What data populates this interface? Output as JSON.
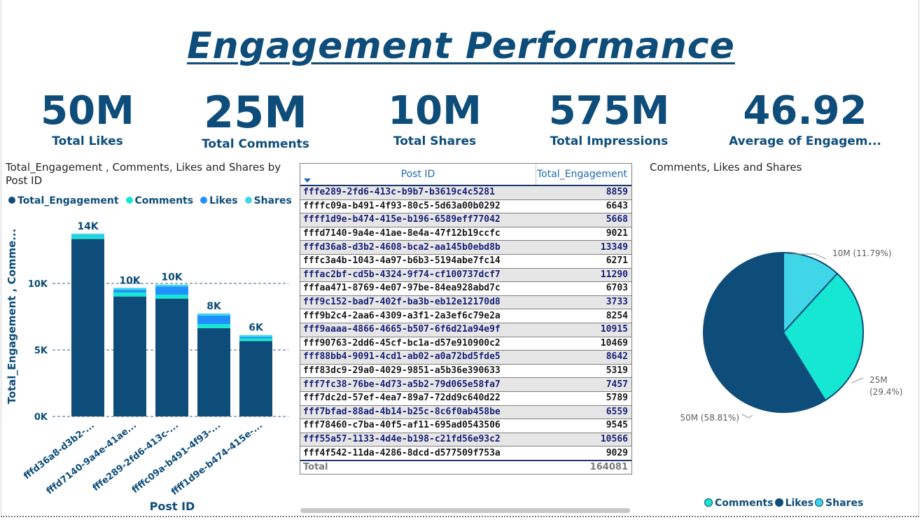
{
  "page": {
    "title": "Engagement Performance"
  },
  "kpis": [
    {
      "value": "50M",
      "label": "Total Likes"
    },
    {
      "value": "25M",
      "label": "Total Comments"
    },
    {
      "value": "10M",
      "label": "Total Shares"
    },
    {
      "value": "575M",
      "label": "Total Impressions"
    },
    {
      "value": "46.92",
      "label": "Average of Engagem..."
    }
  ],
  "bar_visual": {
    "title_line1": "Total_Engagement , Comments, Likes and Shares by",
    "title_line2": "Post ID",
    "legend": [
      {
        "name": "Total_Engagement",
        "color": "#0e4d7a"
      },
      {
        "name": "Comments",
        "color": "#16e7d3"
      },
      {
        "name": "Likes",
        "color": "#1e90ff"
      },
      {
        "name": "Shares",
        "color": "#3fd6e8"
      }
    ]
  },
  "table": {
    "col1": "Post ID",
    "col2": "Total_Engagement",
    "rows": [
      [
        "fffe289-2fd6-413c-b9b7-b3619c4c5281",
        "8859"
      ],
      [
        "ffffc09a-b491-4f93-80c5-5d63a00b0292",
        "6643"
      ],
      [
        "ffff1d9e-b474-415e-b196-6589eff77042",
        "5668"
      ],
      [
        "fffd7140-9a4e-41ae-8e4a-47f12b19ccfc",
        "9021"
      ],
      [
        "fffd36a8-d3b2-4608-bca2-aa145b0ebd8b",
        "13349"
      ],
      [
        "fffc3a4b-1043-4a97-b6b3-5194abe7fc14",
        "6271"
      ],
      [
        "fffac2bf-cd5b-4324-9f74-cf100737dcf7",
        "11290"
      ],
      [
        "fffaa471-8769-4e07-97be-84ea928abd7c",
        "6703"
      ],
      [
        "fff9c152-bad7-402f-ba3b-eb12e12170d8",
        "3733"
      ],
      [
        "fff9b2c4-2aa6-4309-a3f1-2a3ef6c79e2a",
        "8254"
      ],
      [
        "fff9aaaa-4866-4665-b507-6f6d21a94e9f",
        "10915"
      ],
      [
        "fff90763-2dd6-45cf-bc1a-d57e910900c2",
        "10469"
      ],
      [
        "fff88bb4-9091-4cd1-ab02-a0a72bd5fde5",
        "8642"
      ],
      [
        "fff83dc9-29a0-4029-9851-a5b36e390633",
        "5319"
      ],
      [
        "fff7fc38-76be-4d73-a5b2-79d065e58fa7",
        "7457"
      ],
      [
        "fff7dc2d-57ef-4ea7-89a7-72dd9c640d22",
        "5789"
      ],
      [
        "fff7bfad-88ad-4b14-b25c-8c6f0ab458be",
        "6559"
      ],
      [
        "fff78460-c7ba-40f5-af11-695ad0543506",
        "9545"
      ],
      [
        "fff55a57-1133-4d4e-b198-c21fd56e93c2",
        "10566"
      ],
      [
        "fff4f542-11da-4286-8dcd-d577509f753a",
        "9029"
      ]
    ],
    "total_label": "Total",
    "total_value": "164081"
  },
  "pie_visual": {
    "title": "Comments, Likes and Shares",
    "legend": [
      {
        "name": "Comments",
        "color": "#16e7d3"
      },
      {
        "name": "Likes",
        "color": "#0e4d7a"
      },
      {
        "name": "Shares",
        "color": "#3fd6e8"
      }
    ]
  },
  "chart_data": [
    {
      "type": "bar",
      "stacked": true,
      "xlabel": "Post ID",
      "ylabel": "Total_Engagement , Comme...",
      "ylim": [
        0,
        14000
      ],
      "yticks": [
        {
          "v": 0,
          "label": "0K"
        },
        {
          "v": 5000,
          "label": "5K"
        },
        {
          "v": 10000,
          "label": "10K"
        }
      ],
      "grid": "dashed",
      "legend_placement": "top-left",
      "categories": [
        "fffd36a8-d3b2-...",
        "fffd7140-9a4e-41ae...",
        "fffe289-2fd6-413c-...",
        "ffffc09a-b491-4f93-...",
        "ffff1d9e-b474-415e-..."
      ],
      "totals": [
        "14K",
        "10K",
        "10K",
        "8K",
        "6K"
      ],
      "series": [
        {
          "name": "Total_Engagement",
          "color": "#0e4d7a",
          "values": [
            13350,
            9020,
            8860,
            6640,
            5670
          ]
        },
        {
          "name": "Comments",
          "color": "#16e7d3",
          "values": [
            200,
            300,
            300,
            300,
            200
          ]
        },
        {
          "name": "Likes",
          "color": "#1e90ff",
          "values": [
            50,
            200,
            600,
            650,
            100
          ]
        },
        {
          "name": "Shares",
          "color": "#3fd6e8",
          "values": [
            150,
            150,
            150,
            150,
            150
          ]
        }
      ]
    },
    {
      "type": "pie",
      "title": "Comments, Likes and Shares",
      "legend_placement": "bottom",
      "slices": [
        {
          "name": "Likes",
          "value": 50,
          "percent": 58.81,
          "label": "50M (58.81%)",
          "color": "#0e4d7a"
        },
        {
          "name": "Shares",
          "value": 10,
          "percent": 11.79,
          "label": "10M (11.79%)",
          "color": "#3fd6e8"
        },
        {
          "name": "Comments",
          "value": 25,
          "percent": 29.4,
          "label_line1": "25M",
          "label_line2": "(29.4%)",
          "color": "#16e7d3"
        }
      ]
    }
  ]
}
